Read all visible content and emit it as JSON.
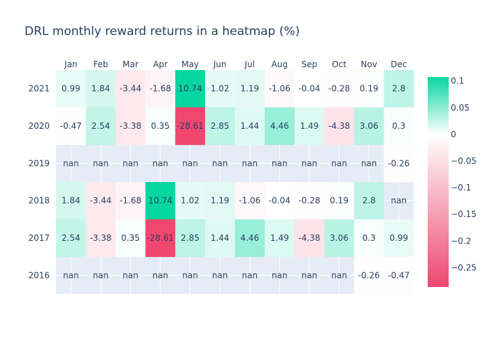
{
  "chart_data": {
    "type": "heatmap",
    "title": "DRL monthly reward returns in a heatmap (%)",
    "x": [
      "Jan",
      "Feb",
      "Mar",
      "Apr",
      "May",
      "Jun",
      "Jul",
      "Aug",
      "Sep",
      "Oct",
      "Nov",
      "Dec"
    ],
    "y": [
      "2021",
      "2020",
      "2019",
      "2018",
      "2017",
      "2016"
    ],
    "z": [
      [
        0.99,
        1.84,
        -3.44,
        -1.68,
        10.74,
        1.02,
        1.19,
        -1.06,
        -0.04,
        -0.28,
        0.19,
        2.8
      ],
      [
        -0.47,
        2.54,
        -3.38,
        0.35,
        -28.61,
        2.85,
        1.44,
        4.46,
        1.49,
        -4.38,
        3.06,
        0.3
      ],
      [
        null,
        null,
        null,
        null,
        null,
        null,
        null,
        null,
        null,
        null,
        null,
        -0.26
      ],
      [
        1.84,
        -3.44,
        -1.68,
        10.74,
        1.02,
        1.19,
        -1.06,
        -0.04,
        -0.28,
        0.19,
        2.8,
        null
      ],
      [
        2.54,
        -3.38,
        0.35,
        -28.61,
        2.85,
        1.44,
        4.46,
        1.49,
        -4.38,
        3.06,
        0.3,
        0.99
      ],
      [
        null,
        null,
        null,
        null,
        null,
        null,
        null,
        null,
        null,
        null,
        -0.26,
        -0.47
      ]
    ],
    "nan_label": "nan",
    "colorbar": {
      "ticks": [
        0.1,
        0.05,
        0,
        -0.05,
        -0.1,
        -0.15,
        -0.2,
        -0.25
      ],
      "tick_labels": [
        "0.1",
        "0.05",
        "0",
        "−0.05",
        "−0.1",
        "−0.15",
        "−0.2",
        "−0.25"
      ],
      "range": [
        -0.2861,
        0.1074
      ]
    },
    "colors": {
      "positive": "#06d6a0",
      "mid": "#ffffff",
      "negative": "#ef476f",
      "nan_background": "#e5ecf6",
      "grid": "#ffffff",
      "text": "#2a3f5f"
    }
  }
}
